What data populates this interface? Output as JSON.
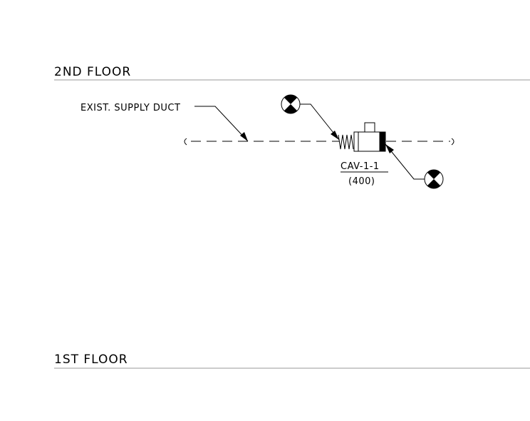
{
  "floors": {
    "upper": "2ND FLOOR",
    "lower": "1ST FLOOR"
  },
  "duct": {
    "label": "EXIST. SUPPLY DUCT"
  },
  "unit": {
    "tag": "CAV-1-1",
    "airflow": "(400)"
  },
  "colors": {
    "line": "#000000",
    "floor_line": "#9a9a9a",
    "background": "#ffffff"
  }
}
